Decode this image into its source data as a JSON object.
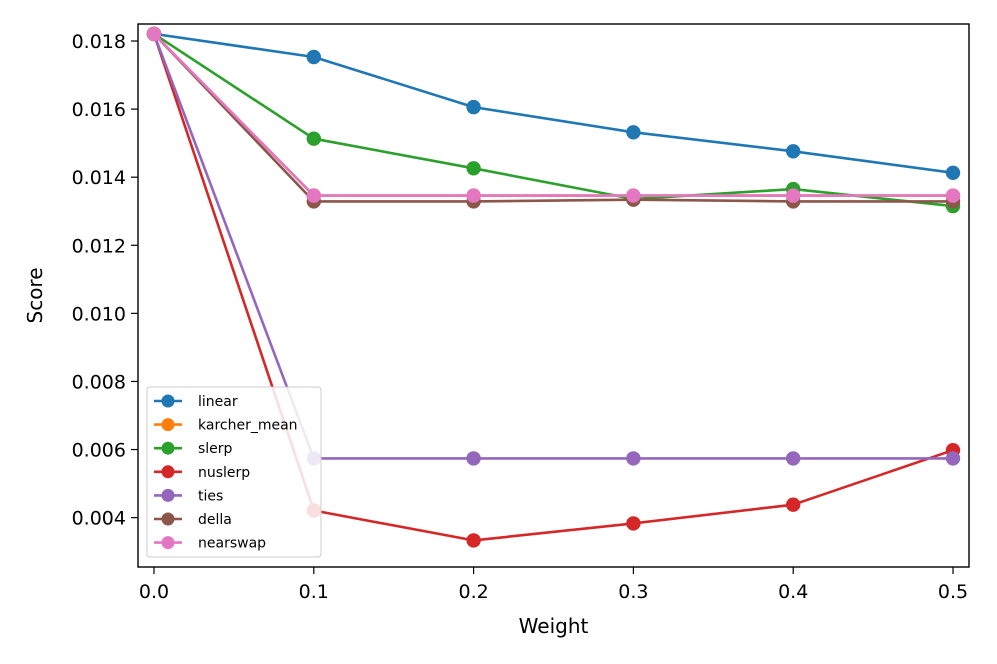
{
  "chart_data": {
    "type": "line",
    "title": "",
    "xlabel": "Weight",
    "ylabel": "Score",
    "x": [
      0.0,
      0.1,
      0.2,
      0.3,
      0.4,
      0.5
    ],
    "xlim": [
      -0.01,
      0.51
    ],
    "ylim": [
      0.00255,
      0.0185
    ],
    "xticks": [
      "0.0",
      "0.1",
      "0.2",
      "0.3",
      "0.4",
      "0.5"
    ],
    "yticks": [
      "0.004",
      "0.006",
      "0.008",
      "0.010",
      "0.012",
      "0.014",
      "0.016",
      "0.018"
    ],
    "grid": false,
    "legend_position": "lower-left",
    "series": [
      {
        "name": "linear",
        "color": "#1f77b4",
        "values": [
          0.01821,
          0.01753,
          0.01606,
          0.01532,
          0.01476,
          0.01413
        ]
      },
      {
        "name": "karcher_mean",
        "color": "#ff7f0e",
        "values": [
          0.01821,
          0.01346,
          0.01346,
          0.01346,
          0.01346,
          0.01346
        ]
      },
      {
        "name": "slerp",
        "color": "#2ca02c",
        "values": [
          0.01821,
          0.01513,
          0.01426,
          0.01336,
          0.01365,
          0.01315
        ]
      },
      {
        "name": "nuslerp",
        "color": "#d62728",
        "values": [
          0.01821,
          0.00421,
          0.00333,
          0.00383,
          0.00438,
          0.00598
        ]
      },
      {
        "name": "ties",
        "color": "#9467bd",
        "values": [
          0.01821,
          0.00574,
          0.00574,
          0.00574,
          0.00574,
          0.00574
        ]
      },
      {
        "name": "della",
        "color": "#8c564b",
        "values": [
          0.01821,
          0.01329,
          0.01329,
          0.01334,
          0.01329,
          0.01329
        ]
      },
      {
        "name": "nearswap",
        "color": "#e377c2",
        "values": [
          0.01821,
          0.01346,
          0.01346,
          0.01346,
          0.01346,
          0.01346
        ]
      }
    ]
  }
}
